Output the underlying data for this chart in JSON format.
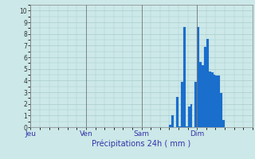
{
  "title": "",
  "xlabel": "Précipitations 24h ( mm )",
  "ylabel": "",
  "background_color": "#cce8e8",
  "grid_color": "#aacccc",
  "bar_color": "#1a6ecc",
  "bar_edge_color": "#1a6ecc",
  "ylim": [
    0,
    10.5
  ],
  "yticks": [
    0,
    1,
    2,
    3,
    4,
    5,
    6,
    7,
    8,
    9,
    10
  ],
  "day_labels": [
    "Jeu",
    "Ven",
    "Sam",
    "Dim"
  ],
  "day_positions": [
    0,
    24,
    48,
    72
  ],
  "total_hours": 96,
  "values": [
    0,
    0,
    0,
    0,
    0,
    0,
    0,
    0,
    0,
    0,
    0,
    0,
    0,
    0,
    0,
    0,
    0,
    0,
    0,
    0,
    0,
    0,
    0,
    0,
    0,
    0,
    0,
    0,
    0,
    0,
    0,
    0,
    0,
    0,
    0,
    0,
    0,
    0,
    0,
    0,
    0,
    0,
    0,
    0,
    0,
    0,
    0,
    0,
    0,
    0,
    0,
    0,
    0,
    0,
    0,
    0,
    0,
    0,
    0,
    0,
    0.2,
    1.0,
    0,
    2.6,
    0.1,
    3.9,
    8.6,
    0.1,
    1.8,
    2.0,
    0,
    3.9,
    8.6,
    5.6,
    5.3,
    6.9,
    7.6,
    4.8,
    4.7,
    4.5,
    4.4,
    4.4,
    2.9,
    0.6
  ]
}
